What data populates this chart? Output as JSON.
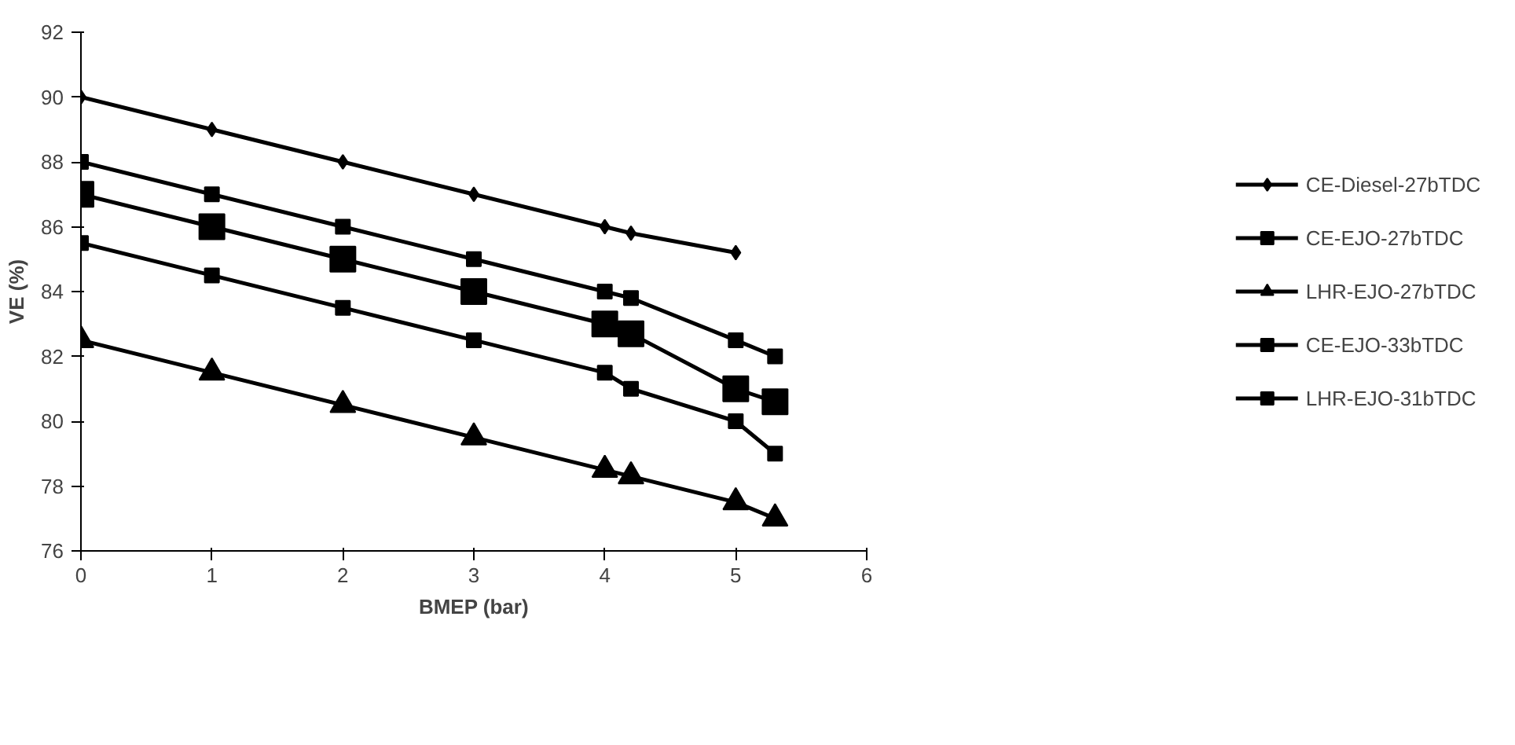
{
  "chart_data": {
    "type": "line",
    "xlabel": "BMEP (bar)",
    "ylabel": "VE (%)",
    "xlim": [
      0,
      6
    ],
    "xticks": [
      0,
      1,
      2,
      3,
      4,
      5,
      6
    ],
    "ylim": [
      76,
      92
    ],
    "yticks": [
      76,
      78,
      80,
      82,
      84,
      86,
      88,
      90,
      92
    ],
    "grid": false,
    "legend": "right",
    "series": [
      {
        "name": "CE-Diesel-27bTDC",
        "color": "#000000",
        "marker": "diamond",
        "x": [
          0,
          1,
          2,
          3,
          4,
          4.2,
          5
        ],
        "values": [
          90,
          89,
          88,
          87,
          86,
          85.8,
          85.2
        ]
      },
      {
        "name": "CE-EJO-27bTDC",
        "color": "#000000",
        "marker": "square",
        "x": [
          0,
          1,
          2,
          3,
          4,
          4.2,
          5,
          5.3
        ],
        "values": [
          87,
          86,
          85,
          84,
          83,
          82.7,
          81,
          80.6
        ]
      },
      {
        "name": "LHR-EJO-27bTDC",
        "color": "#000000",
        "marker": "triangle",
        "x": [
          0,
          1,
          2,
          3,
          4,
          4.2,
          5,
          5.3
        ],
        "values": [
          82.5,
          81.5,
          80.5,
          79.5,
          78.5,
          78.3,
          77.5,
          77
        ]
      },
      {
        "name": "CE-EJO-33bTDC",
        "color": "#000000",
        "marker": "square",
        "x": [
          0,
          1,
          2,
          3,
          4,
          4.2,
          5,
          5.3
        ],
        "values": [
          88,
          87,
          86,
          85,
          84,
          83.8,
          82.5,
          82
        ]
      },
      {
        "name": "LHR-EJO-31bTDC",
        "color": "#000000",
        "marker": "square",
        "x": [
          0,
          1,
          2,
          3,
          4,
          4.2,
          5,
          5.3
        ],
        "values": [
          85.5,
          84.5,
          83.5,
          82.5,
          81.5,
          81,
          80,
          79
        ]
      }
    ]
  }
}
